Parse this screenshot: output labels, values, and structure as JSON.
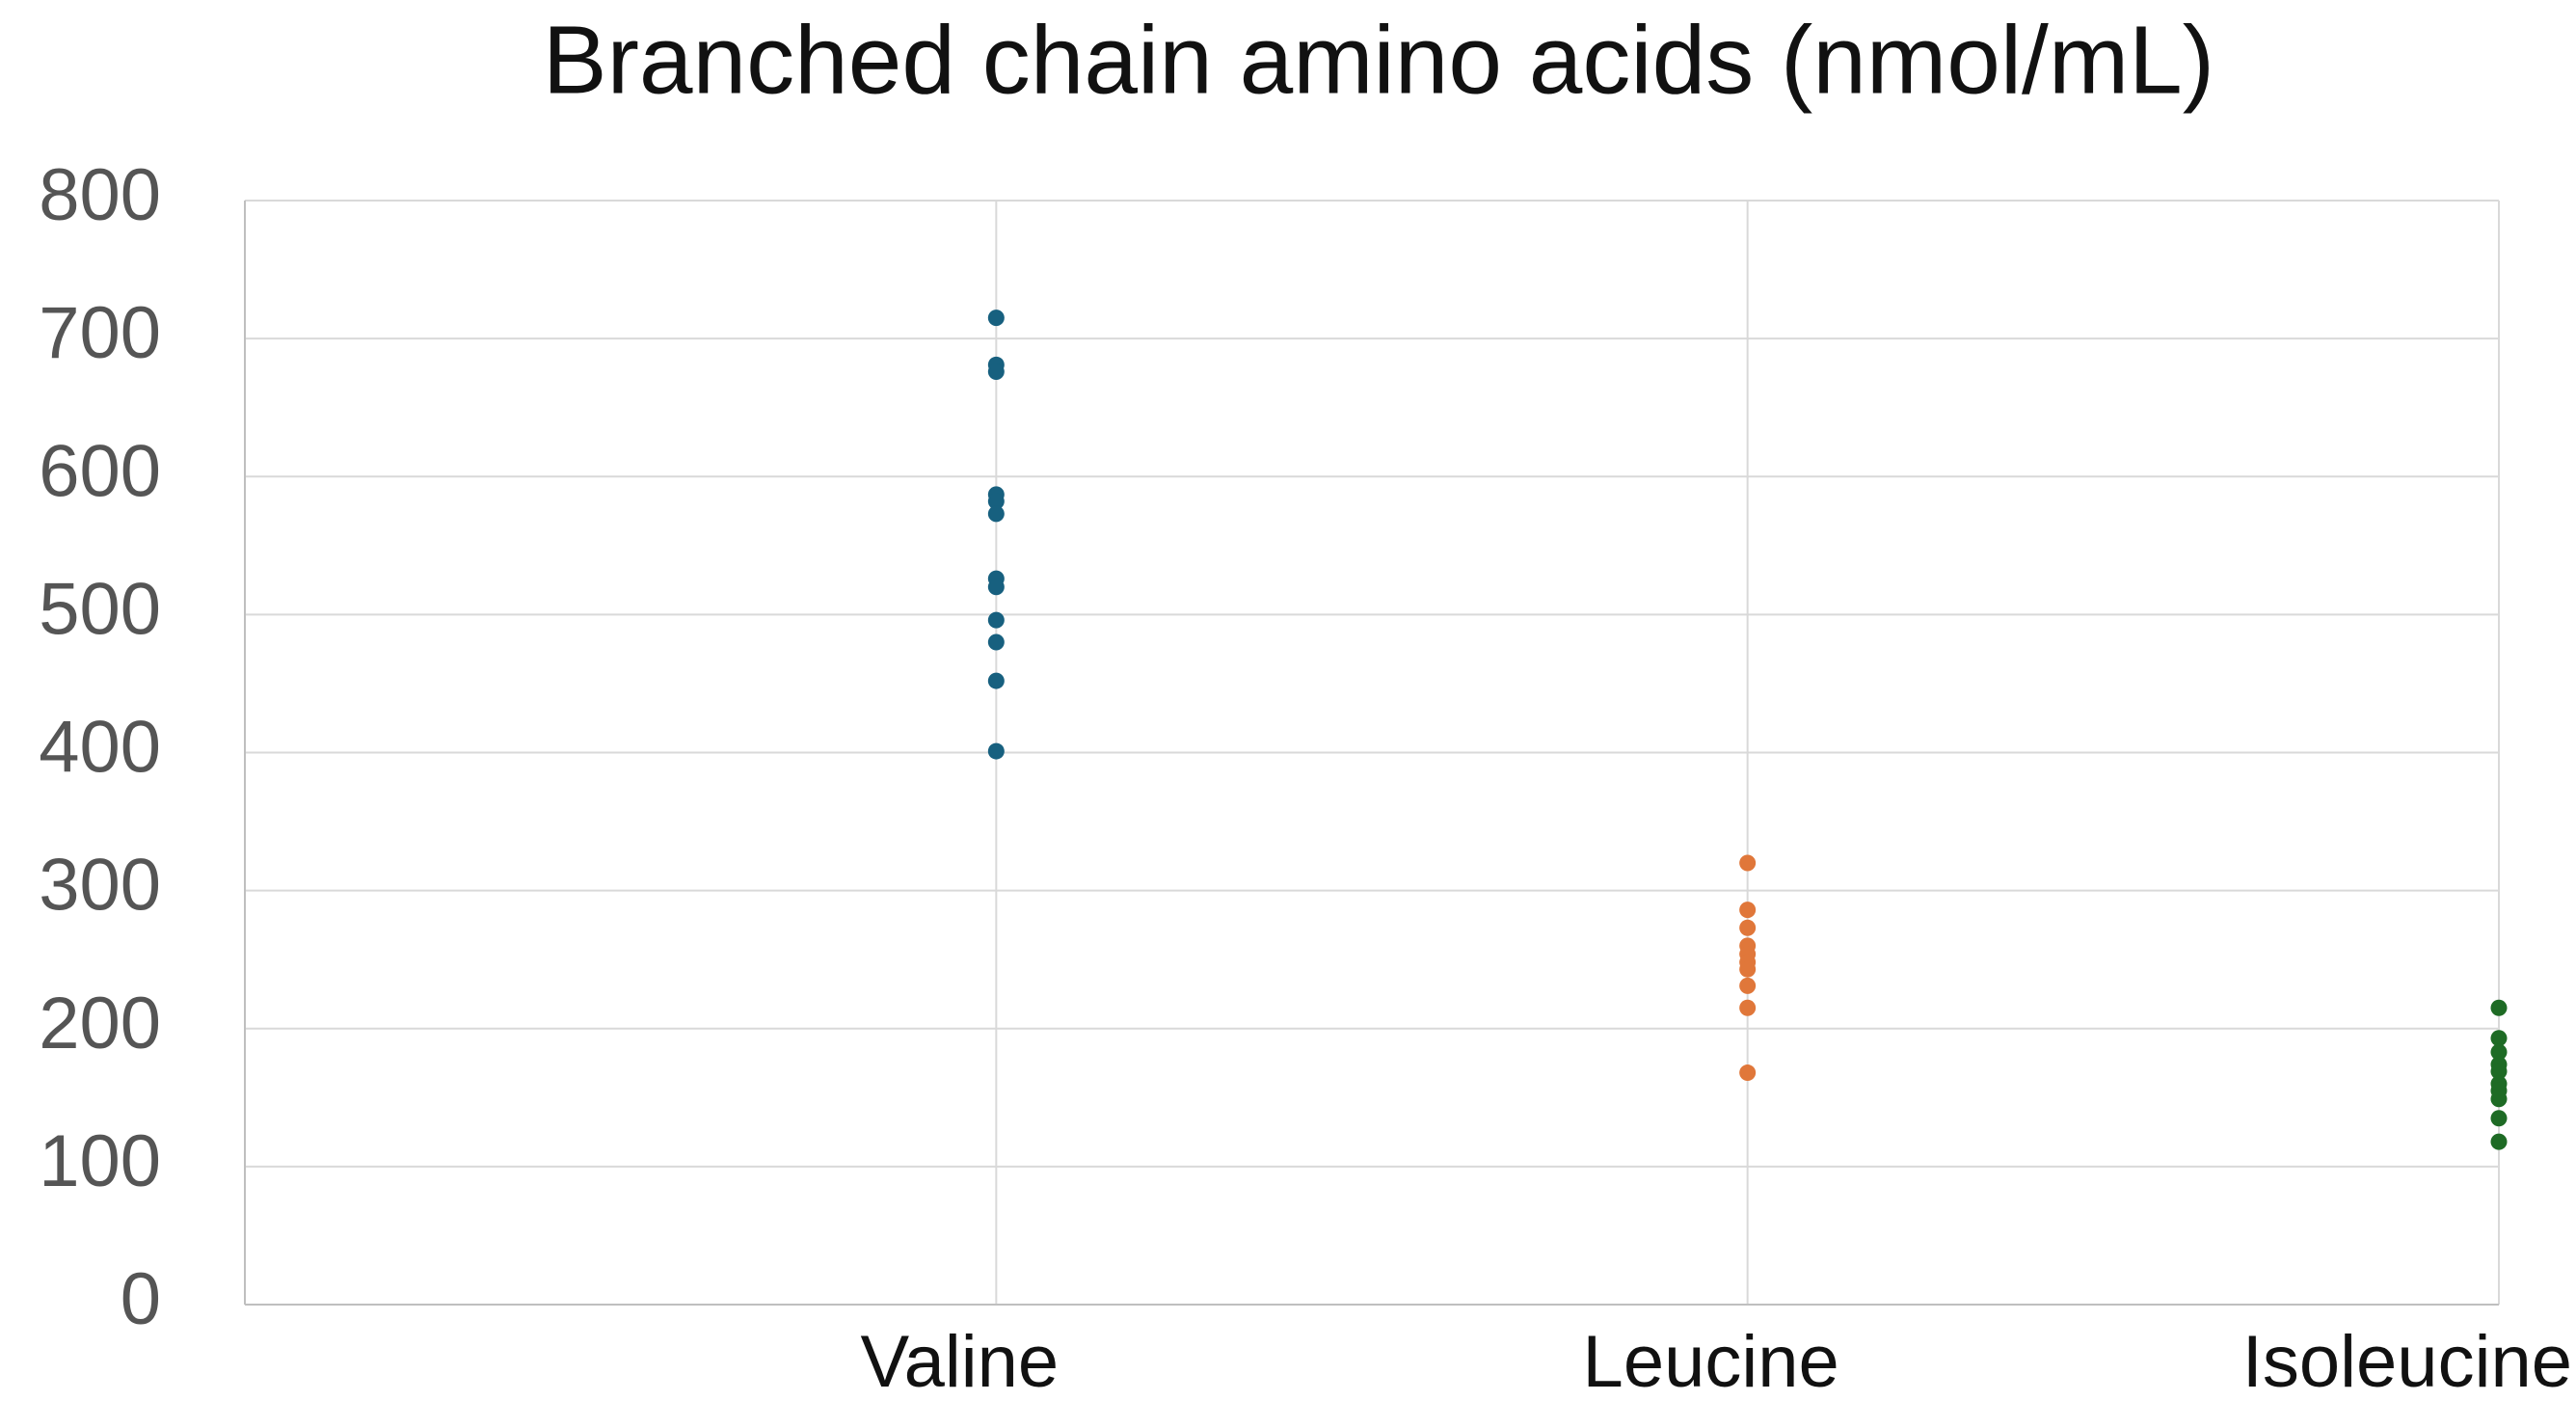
{
  "chart_data": {
    "type": "strip",
    "title": "Branched chain amino acids (nmol/mL)",
    "categories": [
      "Valine",
      "Leucine",
      "Isoleucine"
    ],
    "series": [
      {
        "color": "#17607f",
        "values": [
          715,
          681,
          676,
          587,
          582,
          573,
          526,
          520,
          496,
          480,
          452,
          401
        ]
      },
      {
        "color": "#e0773a",
        "values": [
          320,
          286,
          273,
          260,
          254,
          248,
          243,
          231,
          215,
          168
        ]
      },
      {
        "color": "#1e6b25",
        "values": [
          215,
          193,
          183,
          174,
          169,
          160,
          155,
          149,
          135,
          118
        ]
      }
    ],
    "ylim": [
      0,
      800
    ],
    "yticks": [
      0,
      100,
      200,
      300,
      400,
      500,
      600,
      700,
      800
    ],
    "grid": true
  }
}
